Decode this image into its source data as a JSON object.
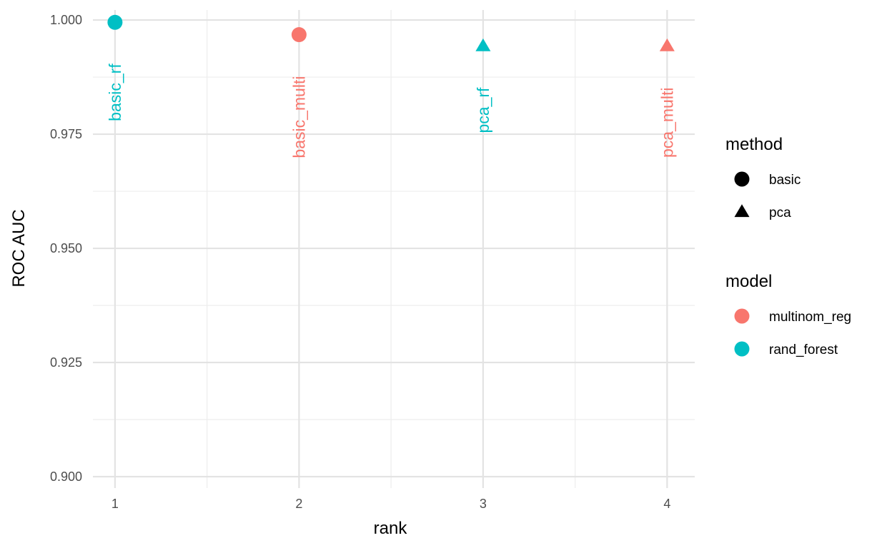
{
  "chart_data": {
    "type": "scatter",
    "title": "",
    "xlabel": "rank",
    "ylabel": "ROC AUC",
    "xlim": [
      0.88,
      4.15
    ],
    "ylim": [
      0.8975,
      1.0022
    ],
    "x_ticks": [
      {
        "value": 1,
        "label": "1"
      },
      {
        "value": 2,
        "label": "2"
      },
      {
        "value": 3,
        "label": "3"
      },
      {
        "value": 4,
        "label": "4"
      }
    ],
    "y_ticks": [
      {
        "value": 0.9,
        "label": "0.900"
      },
      {
        "value": 0.925,
        "label": "0.925"
      },
      {
        "value": 0.95,
        "label": "0.950"
      },
      {
        "value": 0.975,
        "label": "0.975"
      },
      {
        "value": 1.0,
        "label": "1.000"
      }
    ],
    "grid": true,
    "points": [
      {
        "rank": 1,
        "roc_auc": 0.9995,
        "label": "basic_rf",
        "method": "basic",
        "model": "rand_forest"
      },
      {
        "rank": 2,
        "roc_auc": 0.9968,
        "label": "basic_multi",
        "method": "basic",
        "model": "multinom_reg"
      },
      {
        "rank": 3,
        "roc_auc": 0.9943,
        "label": "pca_rf",
        "method": "pca",
        "model": "rand_forest"
      },
      {
        "rank": 4,
        "roc_auc": 0.9943,
        "label": "pca_multi",
        "method": "pca",
        "model": "multinom_reg"
      }
    ],
    "legend": {
      "placement": "right",
      "method": {
        "title": "method",
        "items": [
          {
            "label": "basic",
            "shape": "circle"
          },
          {
            "label": "pca",
            "shape": "triangle"
          }
        ]
      },
      "model": {
        "title": "model",
        "items": [
          {
            "label": "multinom_reg",
            "color": "#F8766D"
          },
          {
            "label": "rand_forest",
            "color": "#00BFC4"
          }
        ]
      }
    }
  }
}
